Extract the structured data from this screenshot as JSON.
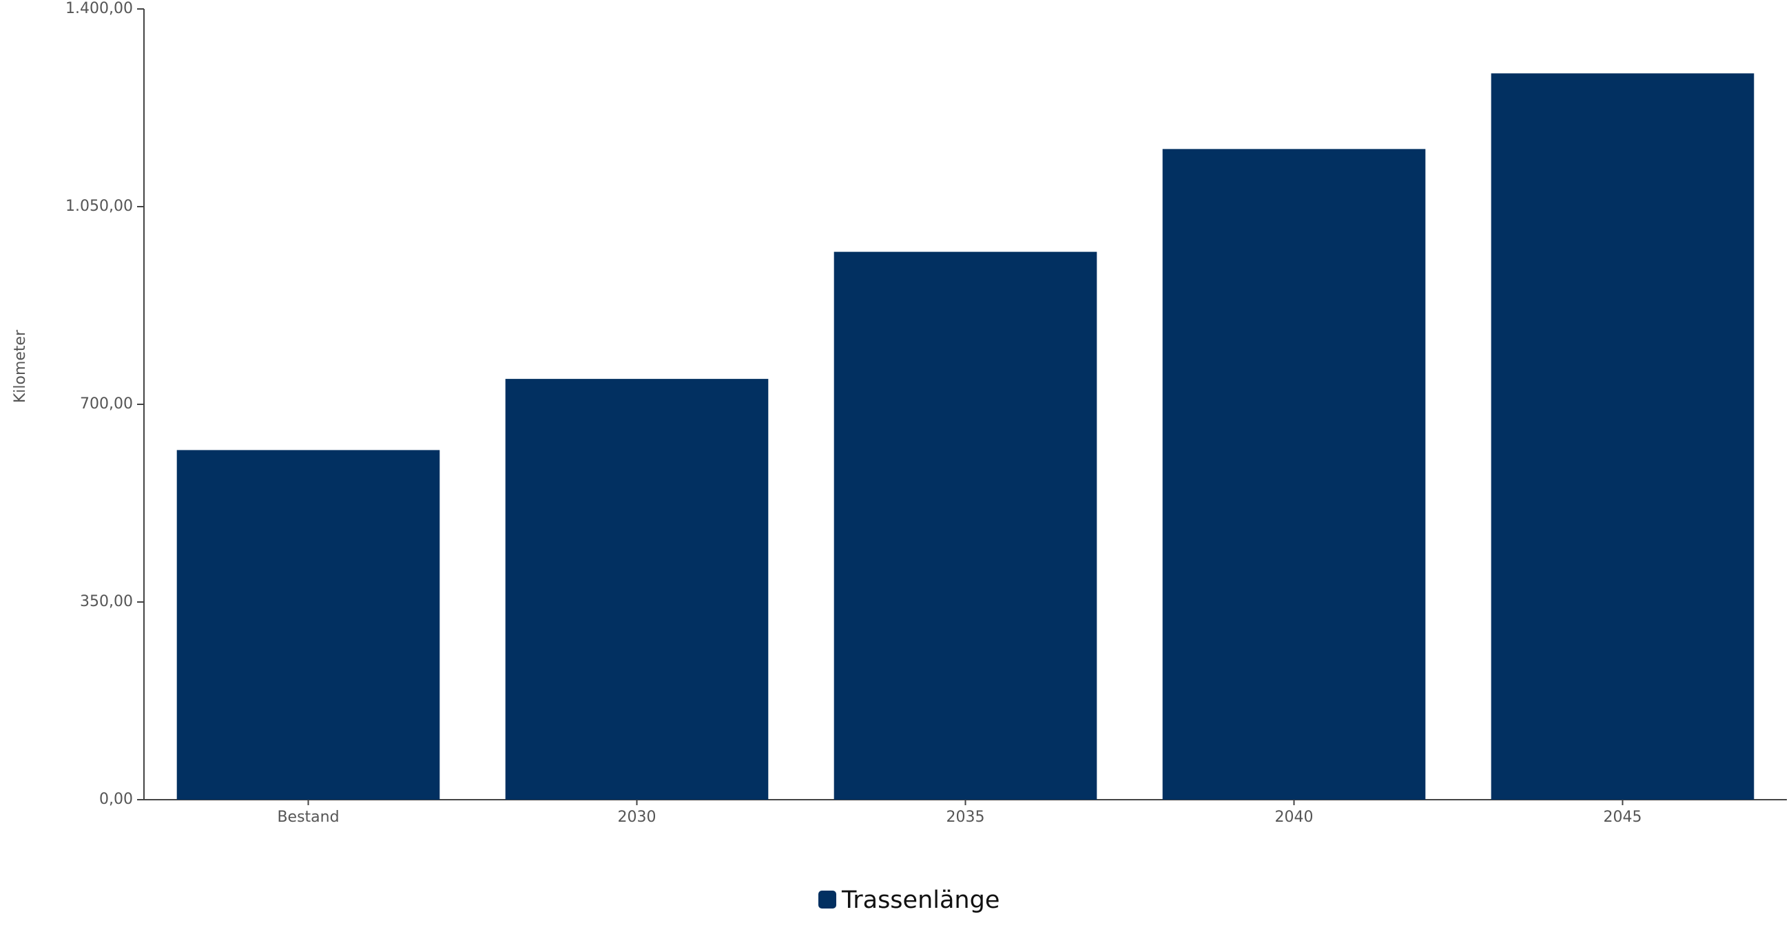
{
  "chart_data": {
    "type": "bar",
    "y_label": "Kilometer",
    "categories": [
      "Bestand",
      "2030",
      "2035",
      "2040",
      "2045"
    ],
    "series": [
      {
        "name": "Trassenlänge",
        "color": "#023061",
        "values": [
          619,
          745,
          970,
          1152,
          1286
        ]
      }
    ],
    "ylim": [
      0,
      1400
    ],
    "yticks": [
      {
        "value": 0,
        "label": "0,00"
      },
      {
        "value": 350,
        "label": "350,00"
      },
      {
        "value": 700,
        "label": "700,00"
      },
      {
        "value": 1050,
        "label": "1.050,00"
      },
      {
        "value": 1400,
        "label": "1.400,00"
      }
    ],
    "grid": false,
    "legend": "bottom"
  }
}
